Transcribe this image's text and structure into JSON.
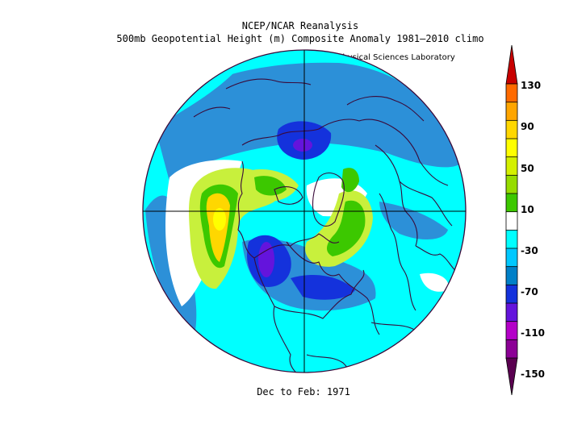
{
  "header": {
    "title_line1": "NCEP/NCAR Reanalysis",
    "title_line2": "500mb Geopotential Height (m) Composite Anomaly 1981–2010 climo",
    "credit": "NOAA Physical Sciences Laboratory"
  },
  "footer": {
    "period": "Dec to Feb: 1971"
  },
  "colorbar": {
    "labels": [
      "130",
      "90",
      "50",
      "10",
      "-30",
      "-70",
      "-110",
      "-150"
    ],
    "bins": [
      "#c80000",
      "#ff6a00",
      "#ffa500",
      "#ffd700",
      "#ffff00",
      "#d4f000",
      "#96dc00",
      "#3cc800",
      "#ffffff",
      "#00ffff",
      "#00c8ff",
      "#0080c8",
      "#1432dc",
      "#6414dc",
      "#b400c8",
      "#8c0096",
      "#5a0050"
    ]
  },
  "map": {
    "projection": "north-polar-stereographic",
    "colors": {
      "land_outline": "#3a0a3a",
      "ocean_base": "#5ad2f0",
      "light_blue": "#00ffff",
      "mid_blue": "#2c90d8",
      "deep_blue": "#1432dc",
      "violet": "#6414dc",
      "light_green": "#c8f03c",
      "green": "#3cc800",
      "yellow": "#ffff00",
      "orange_yellow": "#ffd700"
    }
  }
}
